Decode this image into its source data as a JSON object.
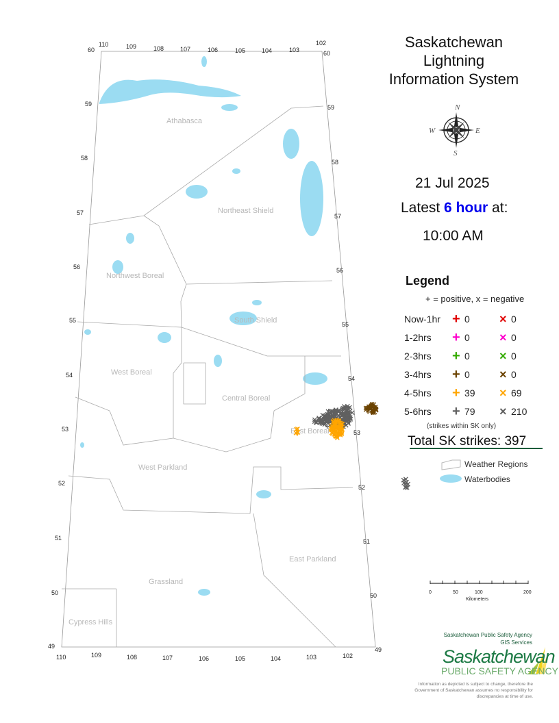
{
  "title": "Saskatchewan Lightning Information System",
  "title_lines": [
    "Saskatchewan",
    "Lightning",
    "Information System"
  ],
  "date": "21 Jul 2025",
  "latest_prefix": "Latest ",
  "latest_highlight": "6 hour",
  "latest_suffix": " at:",
  "time": "10:00 AM",
  "compass": {
    "n": "N",
    "s": "S",
    "e": "E",
    "w": "W"
  },
  "legend": {
    "heading": "Legend",
    "subtitle": "+ = positive, x = negative",
    "rows": [
      {
        "label": "Now-1hr",
        "positive": "0",
        "negative": "0",
        "color": "#e00000"
      },
      {
        "label": "1-2hrs",
        "positive": "0",
        "negative": "0",
        "color": "#ff00cc"
      },
      {
        "label": "2-3hrs",
        "positive": "0",
        "negative": "0",
        "color": "#33aa00"
      },
      {
        "label": "3-4hrs",
        "positive": "0",
        "negative": "0",
        "color": "#6b4200"
      },
      {
        "label": "4-5hrs",
        "positive": "39",
        "negative": "69",
        "color": "#ffa500"
      },
      {
        "label": "5-6hrs",
        "positive": "79",
        "negative": "210",
        "color": "#606060"
      }
    ],
    "note": "(strikes within SK only)",
    "total": "Total SK strikes: 397",
    "weather_regions": "Weather Regions",
    "waterbodies": "Waterbodies"
  },
  "colors": {
    "water": "#9bdcf2",
    "total_underline": "#1a5c3a",
    "boundary": "#aaaaaa"
  },
  "regions": [
    "Athabasca",
    "Northeast Shield",
    "Northwest Boreal",
    "South Shield",
    "West Boreal",
    "Central Boreal",
    "East Boreal",
    "West Parkland",
    "East Parkland",
    "Grassland",
    "Cypress Hills"
  ],
  "lat_labels": [
    "60",
    "59",
    "58",
    "57",
    "56",
    "55",
    "54",
    "53",
    "52",
    "51",
    "50",
    "49"
  ],
  "lon_labels_top": [
    "110",
    "109",
    "108",
    "107",
    "106",
    "105",
    "104",
    "103",
    "102"
  ],
  "lon_labels_bottom": [
    "110",
    "109",
    "108",
    "107",
    "106",
    "105",
    "104",
    "103",
    "102"
  ],
  "scale": {
    "ticks": [
      "0",
      "50",
      "100",
      "200"
    ],
    "unit": "Kilometers"
  },
  "org": {
    "line1": "Saskatchewan Public Safety Agency",
    "line2": "GIS  Services"
  },
  "logo": {
    "name": "Saskatchewan",
    "sub": "PUBLIC SAFETY AGENCY"
  },
  "disclaimer": "Information as depicted is subject to change, therefore the Government of Saskatchewan assumes no responsibility for discrepancies at time of use."
}
